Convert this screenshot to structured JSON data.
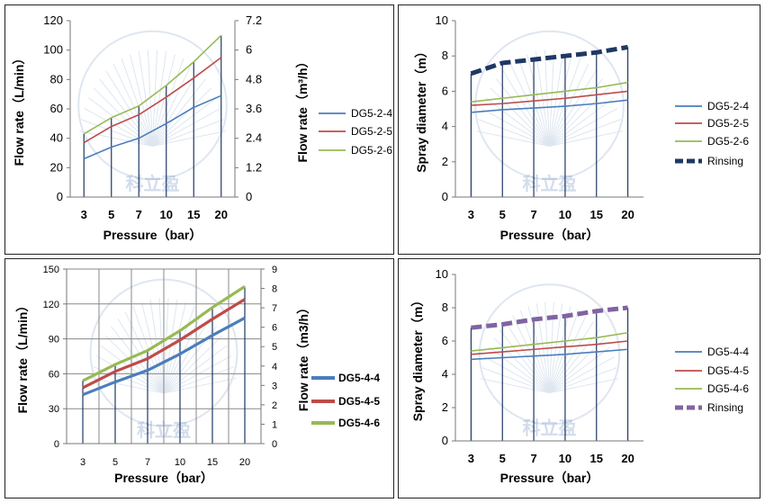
{
  "chart_data": [
    {
      "type": "line",
      "categories": [
        "3",
        "5",
        "7",
        "10",
        "15",
        "20"
      ],
      "ylabel": "Flow rate（L/min）",
      "ylabel2": "Flow rate（m³/h）",
      "xlabel": "Pressure（bar）",
      "ylim": [
        0,
        120
      ],
      "y_ticks": [
        "0",
        "20",
        "40",
        "60",
        "80",
        "100",
        "120"
      ],
      "y2_ticks": [
        "0",
        "1.2",
        "2.4",
        "3.6",
        "4.8",
        "6",
        "7.2"
      ],
      "legend_position": "right",
      "watermark": "科立盈",
      "series": [
        {
          "name": "DG5-2-4",
          "color": "#4a7ebb",
          "values": [
            26,
            34,
            40,
            50,
            61,
            69
          ]
        },
        {
          "name": "DG5-2-5",
          "color": "#be4b48",
          "values": [
            37,
            48,
            56,
            68,
            81,
            95
          ]
        },
        {
          "name": "DG5-2-6",
          "color": "#98b954",
          "values": [
            43,
            54,
            62,
            76,
            92,
            110
          ]
        }
      ]
    },
    {
      "type": "line",
      "categories": [
        "3",
        "5",
        "7",
        "10",
        "15",
        "20"
      ],
      "ylabel": "Spray diameter（m）",
      "xlabel": "Pressure（bar）",
      "ylim": [
        0,
        10
      ],
      "y_ticks": [
        "0",
        "2",
        "4",
        "6",
        "8",
        "10"
      ],
      "legend_position": "right",
      "watermark": "科立盈",
      "series": [
        {
          "name": "DG5-2-4",
          "color": "#4a7ebb",
          "values": [
            4.8,
            4.95,
            5.05,
            5.15,
            5.3,
            5.5
          ]
        },
        {
          "name": "DG5-2-5",
          "color": "#be4b48",
          "values": [
            5.2,
            5.3,
            5.45,
            5.6,
            5.8,
            6.0
          ]
        },
        {
          "name": "DG5-2-6",
          "color": "#98b954",
          "values": [
            5.4,
            5.6,
            5.8,
            6.0,
            6.2,
            6.5
          ]
        },
        {
          "name": "Rinsing",
          "color": "#1f3864",
          "values": [
            7.0,
            7.6,
            7.8,
            8.0,
            8.2,
            8.5
          ]
        }
      ]
    },
    {
      "type": "line",
      "categories": [
        "3",
        "5",
        "7",
        "10",
        "15",
        "20"
      ],
      "ylabel": "Flow rate（L/min）",
      "ylabel2": "Flow rate（m3/h）",
      "xlabel": "Pressure（bar）",
      "ylim": [
        0,
        150
      ],
      "y_ticks": [
        "0",
        "30",
        "60",
        "90",
        "120",
        "150"
      ],
      "y2_ticks": [
        "0",
        "1",
        "2",
        "3",
        "4",
        "5",
        "6",
        "7",
        "8",
        "9"
      ],
      "legend_position": "right",
      "watermark": "科立盈",
      "series": [
        {
          "name": "DG5-4-4",
          "color": "#4a7ebb",
          "values": [
            42,
            53,
            63,
            77,
            93,
            108
          ]
        },
        {
          "name": "DG5-4-5",
          "color": "#be4b48",
          "values": [
            48,
            62,
            73,
            89,
            107,
            124
          ]
        },
        {
          "name": "DG5-4-6",
          "color": "#98b954",
          "values": [
            54,
            68,
            80,
            97,
            117,
            135
          ]
        }
      ]
    },
    {
      "type": "line",
      "categories": [
        "3",
        "5",
        "7",
        "10",
        "15",
        "20"
      ],
      "ylabel": "Spray diameter（m）",
      "xlabel": "Pressure（bar）",
      "ylim": [
        0,
        10
      ],
      "y_ticks": [
        "0",
        "2",
        "4",
        "6",
        "8",
        "10"
      ],
      "legend_position": "right",
      "watermark": "科立盈",
      "series": [
        {
          "name": "DG5-4-4",
          "color": "#4a7ebb",
          "values": [
            4.9,
            5.0,
            5.1,
            5.2,
            5.35,
            5.5
          ]
        },
        {
          "name": "DG5-4-5",
          "color": "#be4b48",
          "values": [
            5.2,
            5.35,
            5.5,
            5.65,
            5.8,
            6.0
          ]
        },
        {
          "name": "DG5-4-6",
          "color": "#98b954",
          "values": [
            5.4,
            5.6,
            5.8,
            6.0,
            6.2,
            6.5
          ]
        },
        {
          "name": "Rinsing",
          "color": "#8064a2",
          "values": [
            6.8,
            7.0,
            7.3,
            7.5,
            7.8,
            8.0
          ]
        }
      ]
    }
  ]
}
